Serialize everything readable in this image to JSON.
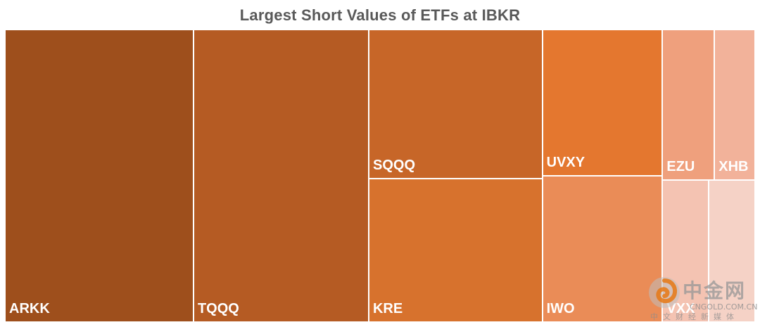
{
  "chart_data": {
    "type": "treemap",
    "title": "Largest Short Values of ETFs at IBKR",
    "items": [
      {
        "label": "ARKK",
        "value": 226,
        "color": "#9E4F1C"
      },
      {
        "label": "TQQQ",
        "value": 210,
        "color": "#B55B23"
      },
      {
        "label": "SQQQ",
        "value": 106,
        "color": "#C76628"
      },
      {
        "label": "KRE",
        "value": 102,
        "color": "#D7722D"
      },
      {
        "label": "UVXY",
        "value": 72,
        "color": "#E4772F"
      },
      {
        "label": "IWO",
        "value": 72,
        "color": "#EA8C57"
      },
      {
        "label": "EZU",
        "value": 32,
        "color": "#EFA07D"
      },
      {
        "label": "XHB",
        "value": 25,
        "color": "#F2B29A"
      },
      {
        "label": "VXX",
        "value": 27,
        "color": "#F4C3B2"
      },
      {
        "label": "",
        "value": 27,
        "color": "#F5D2C6"
      }
    ]
  },
  "watermark": {
    "brand": "中金网",
    "url": "CNGOLD.COM.CN",
    "subtitle": "中文财经新媒体"
  }
}
